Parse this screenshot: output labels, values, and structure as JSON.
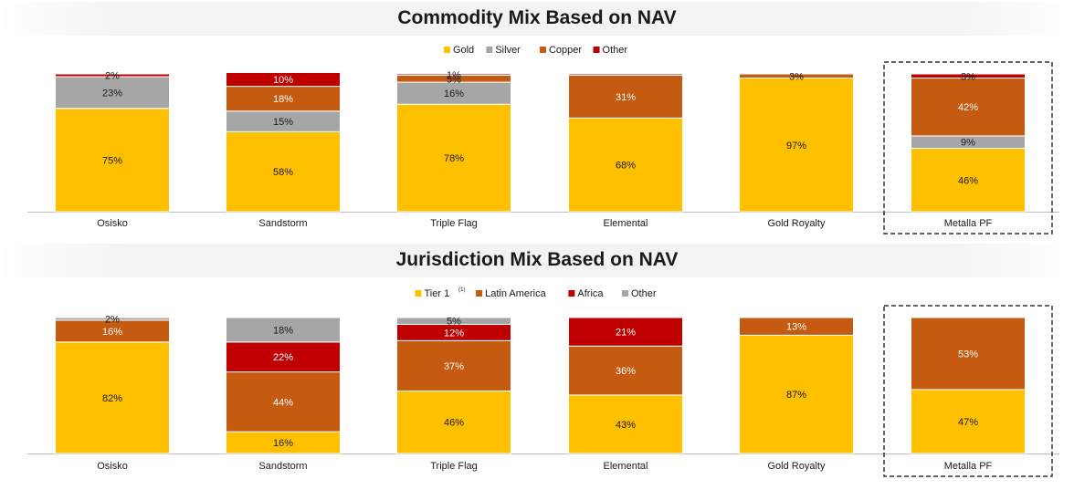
{
  "colors": {
    "gold": "#ffc000",
    "silver": "#a6a6a6",
    "copper": "#c55a11",
    "africa_red": "#c00000",
    "other_red": "#c00000",
    "highlight_border": "#333333"
  },
  "chart_data": [
    {
      "type": "bar",
      "stacked": true,
      "title": "Commodity Mix Based on NAV",
      "categories": [
        "Osisko",
        "Sandstorm",
        "Triple Flag",
        "Elemental",
        "Gold Royalty",
        "Metalla PF"
      ],
      "highlighted_category": "Metalla PF",
      "ylim": [
        0,
        100
      ],
      "grid": false,
      "legend_position": "top-center",
      "series": [
        {
          "name": "Gold",
          "color": "#ffc000",
          "values": [
            75,
            58,
            78,
            68,
            97,
            46
          ],
          "labels": [
            "75%",
            "58%",
            "78%",
            "68%",
            "97%",
            "46%"
          ]
        },
        {
          "name": "Silver",
          "color": "#a6a6a6",
          "values": [
            23,
            15,
            16,
            0,
            0,
            9
          ],
          "labels": [
            "23%",
            "15%",
            "16%",
            "",
            "",
            "9%"
          ]
        },
        {
          "name": "Copper",
          "color": "#c55a11",
          "values": [
            0,
            18,
            5,
            31,
            3,
            42
          ],
          "labels": [
            "",
            "18%",
            "5%",
            "31%",
            "3%",
            "42%"
          ]
        },
        {
          "name": "Other",
          "color": "#c00000",
          "values": [
            2,
            10,
            1,
            1,
            0,
            3
          ],
          "labels": [
            "2%",
            "10%",
            "1%",
            "",
            "",
            "3%"
          ]
        }
      ]
    },
    {
      "type": "bar",
      "stacked": true,
      "title": "Jurisdiction Mix Based on NAV",
      "categories": [
        "Osisko",
        "Sandstorm",
        "Triple Flag",
        "Elemental",
        "Gold Royalty",
        "Metalla PF"
      ],
      "highlighted_category": "Metalla PF",
      "ylim": [
        0,
        100
      ],
      "grid": false,
      "legend_position": "top-center",
      "series": [
        {
          "name": "Tier 1",
          "superscript": "(1)",
          "color": "#ffc000",
          "values": [
            82,
            16,
            46,
            43,
            87,
            47
          ],
          "labels": [
            "82%",
            "16%",
            "46%",
            "43%",
            "87%",
            "47%"
          ]
        },
        {
          "name": "Latin America",
          "color": "#c55a11",
          "values": [
            16,
            44,
            37,
            36,
            13,
            53
          ],
          "labels": [
            "16%",
            "44%",
            "37%",
            "36%",
            "13%",
            "53%"
          ]
        },
        {
          "name": "Africa",
          "color": "#c00000",
          "values": [
            0,
            22,
            12,
            21,
            0,
            0
          ],
          "labels": [
            "",
            "22%",
            "12%",
            "21%",
            "",
            ""
          ]
        },
        {
          "name": "Other",
          "color": "#a6a6a6",
          "values": [
            2,
            18,
            5,
            0,
            0,
            0
          ],
          "labels": [
            "2%",
            "18%",
            "5%",
            "",
            "",
            ""
          ]
        }
      ]
    }
  ]
}
